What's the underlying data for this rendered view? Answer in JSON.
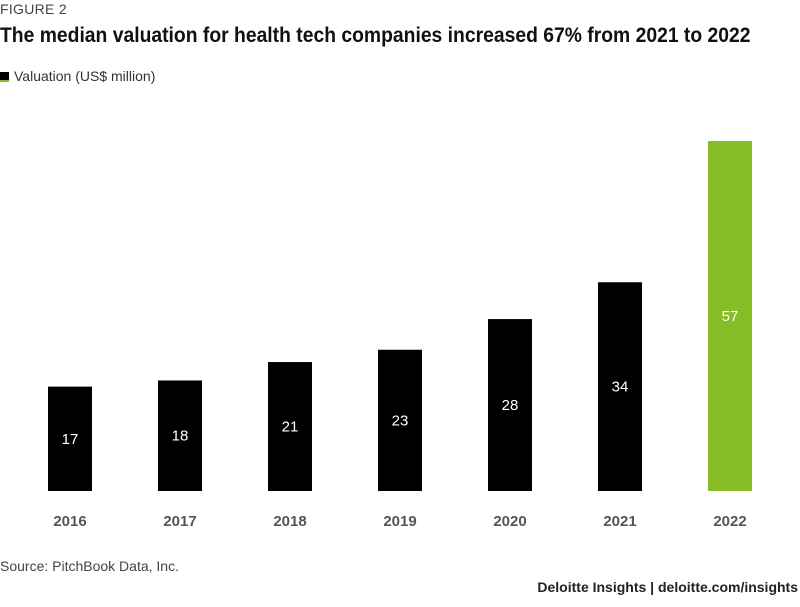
{
  "figure_label": "FIGURE 2",
  "footer": {
    "source": "Source: PitchBook Data, Inc.",
    "brand": "Deloitte Insights | deloitte.com/insights"
  },
  "colors": {
    "default_bar": "#000000",
    "highlight_bar": "#86bc25"
  },
  "chart_data": {
    "type": "bar",
    "title": "The median valuation for health tech companies increased 67% from 2021 to 2022",
    "xlabel": "",
    "ylabel": "",
    "categories": [
      "2016",
      "2017",
      "2018",
      "2019",
      "2020",
      "2021",
      "2022"
    ],
    "series": [
      {
        "name": "Valuation (US$ million)",
        "values": [
          17,
          18,
          21,
          23,
          28,
          34,
          57
        ],
        "highlight": [
          "2022"
        ]
      }
    ],
    "ylim": [
      0,
      57
    ],
    "grid": false,
    "legend": "top-left",
    "data_labels": true
  }
}
